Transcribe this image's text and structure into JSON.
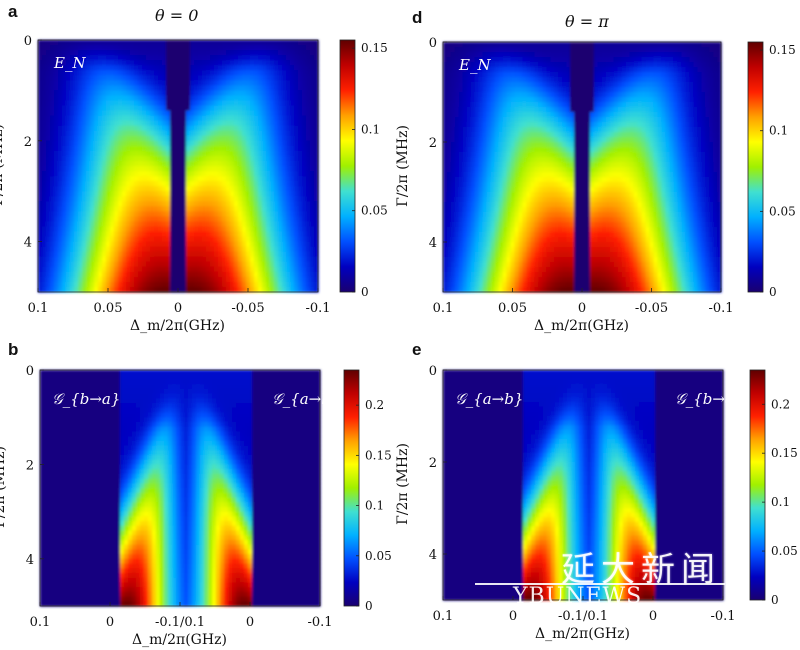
{
  "chart_data": [
    {
      "id": "a",
      "panel_label": "a",
      "type": "heatmap",
      "title": "θ = 0",
      "xlabel": "Δ_m/2π(GHz)",
      "ylabel": "Γ/2π (MHz)",
      "x_ticks": [
        "0.1",
        "0.05",
        "0",
        "-0.05",
        "-0.1"
      ],
      "y_ticks": [
        "0",
        "2",
        "4"
      ],
      "xlim": [
        0.1,
        -0.1
      ],
      "ylim": [
        0,
        5
      ],
      "inset_labels": [
        "E_N"
      ],
      "colorbar": {
        "min": 0,
        "max": 0.155,
        "ticks": [
          "0",
          "0.05",
          "0.1",
          "0.15"
        ]
      },
      "peaks": [
        {
          "x": 0.025,
          "y": 5,
          "value": 0.155
        },
        {
          "x": -0.025,
          "y": 5,
          "value": 0.155
        }
      ]
    },
    {
      "id": "d",
      "panel_label": "d",
      "type": "heatmap",
      "title": "θ = π",
      "xlabel": "Δ_m/2π(GHz)",
      "ylabel": "Γ/2π (MHz)",
      "x_ticks": [
        "0.1",
        "0.05",
        "0",
        "-0.05",
        "-0.1"
      ],
      "y_ticks": [
        "0",
        "2",
        "4"
      ],
      "xlim": [
        0.1,
        -0.1
      ],
      "ylim": [
        0,
        5
      ],
      "inset_labels": [
        "E_N"
      ],
      "colorbar": {
        "min": 0,
        "max": 0.155,
        "ticks": [
          "0",
          "0.05",
          "0.1",
          "0.15"
        ]
      },
      "peaks": [
        {
          "x": 0.025,
          "y": 5,
          "value": 0.155
        },
        {
          "x": -0.025,
          "y": 5,
          "value": 0.155
        }
      ]
    },
    {
      "id": "b",
      "panel_label": "b",
      "type": "heatmap",
      "title": "",
      "xlabel": "Δ_m/2π(GHz)",
      "ylabel": "Γ/2π (MHz)",
      "x_ticks": [
        "0.1",
        "0",
        "-0.1/0.1",
        "0",
        "-0.1"
      ],
      "y_ticks": [
        "0",
        "2",
        "4"
      ],
      "ylim": [
        0,
        5
      ],
      "inset_labels": [
        "𝒢_{b→a}",
        "𝒢_{a→b}"
      ],
      "colorbar": {
        "min": 0,
        "max": 0.235,
        "ticks": [
          "0",
          "0.05",
          "0.1",
          "0.15",
          "0.2"
        ]
      },
      "peaks": [
        {
          "x": -0.02,
          "y": 5,
          "value": 0.23
        },
        {
          "x": 0.02,
          "y": 5,
          "value": 0.23
        }
      ]
    },
    {
      "id": "e",
      "panel_label": "e",
      "type": "heatmap",
      "title": "",
      "xlabel": "Δ_m/2π(GHz)",
      "ylabel": "Γ/2π (MHz)",
      "x_ticks": [
        "0.1",
        "0",
        "-0.1/0.1",
        "0",
        "-0.1"
      ],
      "y_ticks": [
        "0",
        "2",
        "4"
      ],
      "ylim": [
        0,
        5
      ],
      "inset_labels": [
        "𝒢_{a→b}",
        "𝒢_{b→a}"
      ],
      "colorbar": {
        "min": 0,
        "max": 0.235,
        "ticks": [
          "0",
          "0.05",
          "0.1",
          "0.15",
          "0.2"
        ]
      },
      "peaks": [
        {
          "x": -0.02,
          "y": 5,
          "value": 0.23
        },
        {
          "x": 0.02,
          "y": 5,
          "value": 0.23
        }
      ]
    }
  ],
  "watermark": {
    "text_cn": "延大新闻",
    "text_en": "YBUNEWS"
  },
  "colors": {
    "colormap": [
      "#1a0070",
      "#0000c0",
      "#0050ff",
      "#00b0ff",
      "#40e0d0",
      "#a0f000",
      "#ffff00",
      "#ffa000",
      "#ff2000",
      "#c00000",
      "#600000"
    ]
  }
}
